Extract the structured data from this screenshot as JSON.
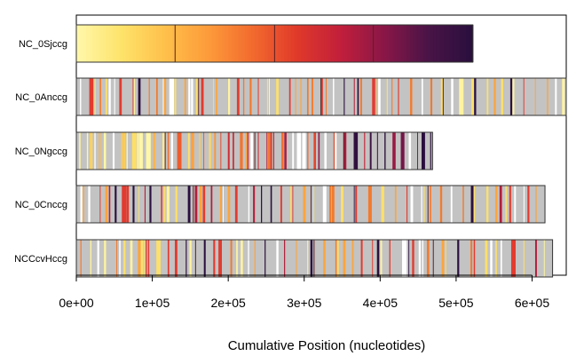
{
  "chart_data": {
    "type": "bar",
    "xlabel": "Cumulative Position (nucleotides)",
    "ylabel": "",
    "xlim": [
      0,
      645000
    ],
    "xticks": [
      0,
      100000,
      200000,
      300000,
      400000,
      500000,
      600000
    ],
    "xtick_labels": [
      "0e+00",
      "1e+05",
      "2e+05",
      "3e+05",
      "4e+05",
      "5e+05",
      "6e+05"
    ],
    "grid": false,
    "legend": "none",
    "colors": {
      "gradient": [
        "#fff7a8",
        "#fee36a",
        "#fec04a",
        "#fd9a3a",
        "#f26a2e",
        "#e03a2a",
        "#c21f3b",
        "#8a1747",
        "#4a1447",
        "#2a0f3d"
      ],
      "gray": "#c3c3c3",
      "white": "#ffffff",
      "yellow_light": "#fff3a0",
      "yellow": "#fde06a",
      "orange": "#fca43c",
      "orange_dark": "#f37a2c",
      "red": "#e23b2f",
      "dark_red": "#b21e3a",
      "purple": "#2b103f",
      "border": "#333333",
      "divider": "#5a2020"
    },
    "tracks": [
      {
        "label": "NC_0Sjccg",
        "length": 522000,
        "style": "gradient",
        "dividers": [
          130000,
          261000,
          391000
        ]
      },
      {
        "label": "NC_0Anccg",
        "length": 645000,
        "style": "striped",
        "seed": 11,
        "density": 0.55,
        "gradient_mix": 0.0,
        "dividers": [
          161000,
          322000,
          483000
        ]
      },
      {
        "label": "NC_0Ngccg",
        "length": 469000,
        "style": "striped",
        "seed": 23,
        "density": 0.8,
        "gradient_mix": 1.0,
        "dividers": [
          117000,
          235000,
          352000
        ]
      },
      {
        "label": "NC_0Cnccg",
        "length": 617000,
        "style": "striped",
        "seed": 37,
        "density": 0.5,
        "gradient_mix": 0.0,
        "dividers": [
          154000,
          309000,
          463000
        ]
      },
      {
        "label": "NCCcvHccg",
        "length": 627000,
        "style": "striped",
        "seed": 53,
        "density": 0.5,
        "gradient_mix": 0.0,
        "dividers": [
          157000,
          313000,
          470000
        ]
      }
    ]
  }
}
